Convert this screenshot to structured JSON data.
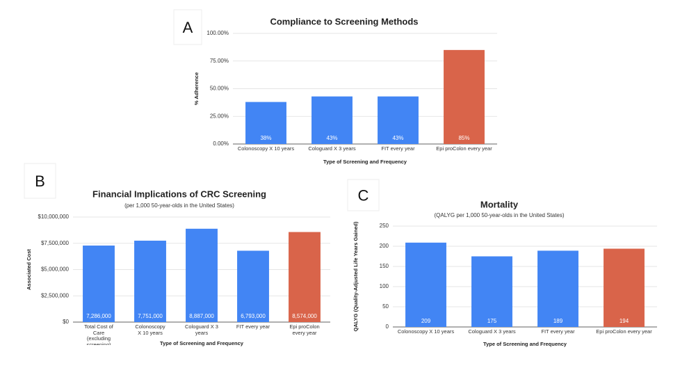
{
  "chart_data": [
    {
      "type": "bar",
      "label": "A",
      "title": "Compliance to Screening Methods",
      "x_label": "Type of Screening and Frequency",
      "y_label": "% Adherence",
      "categories": [
        "Colonoscopy X 10 years",
        "Cologuard X 3 years",
        "FIT every year",
        "Epi proColon every year"
      ],
      "values": [
        38,
        43,
        43,
        85
      ],
      "value_labels": [
        "38%",
        "43%",
        "43%",
        "85%"
      ],
      "colors": [
        "#4285f4",
        "#4285f4",
        "#4285f4",
        "#d9644a"
      ],
      "ylim": [
        0,
        100
      ],
      "yticks": [
        {
          "value": 0,
          "label": "0.00%"
        },
        {
          "value": 25,
          "label": "25.00%"
        },
        {
          "value": 50,
          "label": "50.00%"
        },
        {
          "value": 75,
          "label": "75.00%"
        },
        {
          "value": 100,
          "label": "100.00%"
        }
      ],
      "grid": true
    },
    {
      "type": "bar",
      "label": "B",
      "title": "Financial Implications of CRC Screening",
      "subtitle": "(per 1,000 50-year-olds in the United States)",
      "x_label": "Type of Screening and Frequency",
      "y_label": "Associated Cost",
      "categories": [
        "Total Cost of Care (excluding screening)",
        "Colonoscopy X 10 years",
        "Cologuard X 3 years",
        "FIT every year",
        "Epi proColon every year"
      ],
      "values": [
        7286000,
        7751000,
        8887000,
        6793000,
        8574000
      ],
      "value_labels": [
        "7,286,000",
        "7,751,000",
        "8,887,000",
        "6,793,000",
        "8,574,000"
      ],
      "colors": [
        "#4285f4",
        "#4285f4",
        "#4285f4",
        "#4285f4",
        "#d9644a"
      ],
      "ylim": [
        0,
        10000000
      ],
      "yticks": [
        {
          "value": 0,
          "label": "$0"
        },
        {
          "value": 2500000,
          "label": "$2,500,000"
        },
        {
          "value": 5000000,
          "label": "$5,000,000"
        },
        {
          "value": 7500000,
          "label": "$7,500,000"
        },
        {
          "value": 10000000,
          "label": "$10,000,000"
        }
      ],
      "grid": true
    },
    {
      "type": "bar",
      "label": "C",
      "title": "Mortality",
      "subtitle": "(QALYG per 1,000 50-year-olds in the United States)",
      "x_label": "Type of Screening and Frequency",
      "y_label": "QALYG (Quality-Adjusted Life Years Gained)",
      "categories": [
        "Colonoscopy X 10 years",
        "Cologuard X 3 years",
        "FIT every year",
        "Epi proColon every year"
      ],
      "values": [
        209,
        175,
        189,
        194
      ],
      "colors": [
        "#4285f4",
        "#4285f4",
        "#4285f4",
        "#d9644a"
      ],
      "ylim": [
        0,
        250
      ],
      "yticks": [
        0,
        50,
        100,
        150,
        200,
        250
      ],
      "grid": true
    }
  ]
}
